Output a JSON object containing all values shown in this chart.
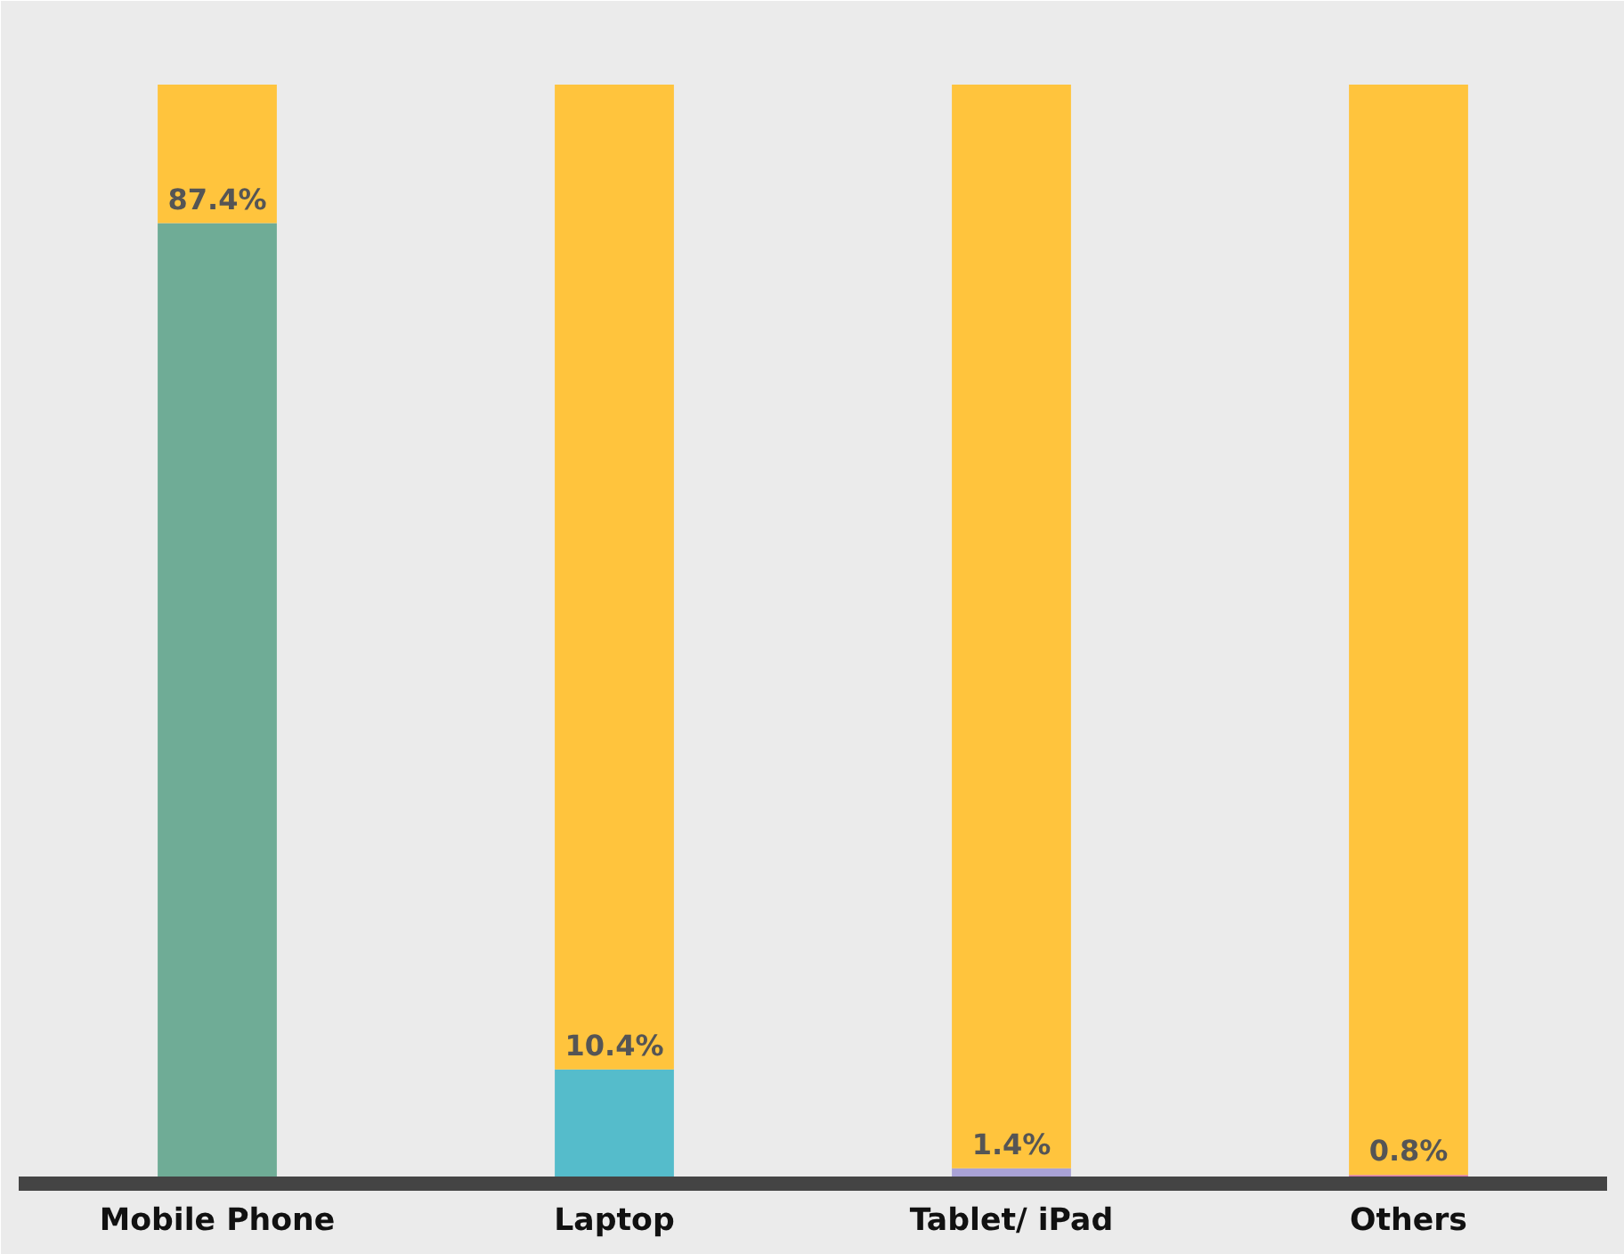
{
  "chart_data": {
    "type": "bar",
    "stacked": true,
    "categories": [
      "Mobile Phone",
      "Laptop",
      "Tablet/ iPad",
      "Others"
    ],
    "ylim": [
      0,
      100
    ],
    "series": [
      {
        "colors": [
          "#6fac96",
          "#55bccb",
          "#a9a2d6",
          "#d877a8"
        ],
        "values": [
          87.4,
          10.4,
          1.4,
          0.8
        ],
        "value_labels": [
          "87.4%",
          "10.4%",
          "1.4%",
          "0.8%"
        ]
      },
      {
        "color": "#ffc43d",
        "values": [
          12.6,
          89.6,
          98.6,
          99.2
        ]
      }
    ],
    "grid": false
  }
}
